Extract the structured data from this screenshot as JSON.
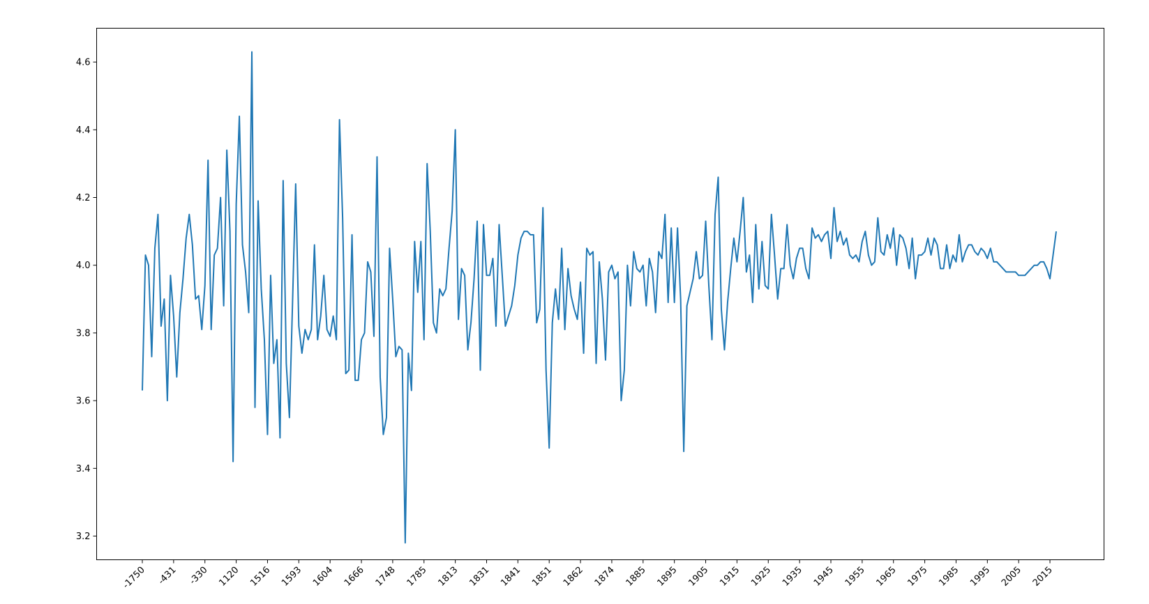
{
  "chart_data": {
    "type": "line",
    "title": "",
    "xlabel": "",
    "ylabel": "",
    "grid": false,
    "legend": "none",
    "line_color": "#1f77b4",
    "ylim": [
      3.13,
      4.7
    ],
    "yticks": [
      3.2,
      3.4,
      3.6,
      3.8,
      4.0,
      4.2,
      4.4,
      4.6
    ],
    "xtick_labels": [
      "-1750",
      "-431",
      "-330",
      "1120",
      "1516",
      "1593",
      "1604",
      "1666",
      "1748",
      "1785",
      "1813",
      "1831",
      "1841",
      "1851",
      "1862",
      "1874",
      "1885",
      "1895",
      "1905",
      "1915",
      "1925",
      "1935",
      "1945",
      "1955",
      "1965",
      "1975",
      "1985",
      "1995",
      "2005",
      "2015"
    ],
    "xtick_every": 10,
    "series": [
      {
        "values": [
          3.63,
          4.03,
          4.0,
          3.73,
          4.05,
          4.15,
          3.82,
          3.9,
          3.6,
          3.97,
          3.85,
          3.67,
          3.86,
          3.96,
          4.08,
          4.15,
          4.06,
          3.9,
          3.91,
          3.81,
          3.94,
          4.31,
          3.81,
          4.03,
          4.05,
          4.2,
          3.88,
          4.34,
          4.1,
          3.42,
          4.18,
          4.44,
          4.06,
          3.98,
          3.86,
          4.63,
          3.58,
          4.19,
          3.93,
          3.78,
          3.5,
          3.97,
          3.71,
          3.78,
          3.49,
          4.25,
          3.71,
          3.55,
          3.89,
          4.24,
          3.82,
          3.74,
          3.81,
          3.78,
          3.81,
          4.06,
          3.78,
          3.85,
          3.97,
          3.81,
          3.79,
          3.85,
          3.78,
          4.43,
          4.14,
          3.68,
          3.69,
          4.09,
          3.66,
          3.66,
          3.78,
          3.8,
          4.01,
          3.98,
          3.79,
          4.32,
          3.67,
          3.5,
          3.55,
          4.05,
          3.9,
          3.73,
          3.76,
          3.75,
          3.18,
          3.74,
          3.63,
          4.07,
          3.92,
          4.07,
          3.78,
          4.3,
          4.1,
          3.83,
          3.8,
          3.93,
          3.91,
          3.93,
          4.05,
          4.16,
          4.4,
          3.84,
          3.99,
          3.97,
          3.75,
          3.83,
          3.96,
          4.13,
          3.69,
          4.12,
          3.97,
          3.97,
          4.02,
          3.82,
          4.12,
          3.97,
          3.82,
          3.85,
          3.88,
          3.94,
          4.03,
          4.08,
          4.1,
          4.1,
          4.09,
          4.09,
          3.83,
          3.87,
          4.17,
          3.69,
          3.46,
          3.83,
          3.93,
          3.84,
          4.05,
          3.81,
          3.99,
          3.91,
          3.87,
          3.84,
          3.95,
          3.74,
          4.05,
          4.03,
          4.04,
          3.71,
          4.01,
          3.9,
          3.72,
          3.98,
          4.0,
          3.96,
          3.98,
          3.6,
          3.69,
          4.0,
          3.88,
          4.04,
          3.99,
          3.98,
          4.0,
          3.88,
          4.02,
          3.98,
          3.86,
          4.04,
          4.02,
          4.15,
          3.89,
          4.11,
          3.89,
          4.11,
          3.9,
          3.45,
          3.88,
          3.92,
          3.96,
          4.04,
          3.96,
          3.97,
          4.13,
          3.94,
          3.78,
          4.15,
          4.26,
          3.87,
          3.75,
          3.89,
          3.99,
          4.08,
          4.01,
          4.1,
          4.2,
          3.98,
          4.03,
          3.89,
          4.12,
          3.93,
          4.07,
          3.94,
          3.93,
          4.15,
          4.03,
          3.9,
          3.99,
          3.99,
          4.12,
          4.0,
          3.96,
          4.02,
          4.05,
          4.05,
          3.99,
          3.96,
          4.11,
          4.08,
          4.09,
          4.07,
          4.09,
          4.1,
          4.02,
          4.17,
          4.07,
          4.1,
          4.06,
          4.08,
          4.03,
          4.02,
          4.03,
          4.01,
          4.07,
          4.1,
          4.03,
          4.0,
          4.01,
          4.14,
          4.04,
          4.03,
          4.09,
          4.05,
          4.11,
          4.0,
          4.09,
          4.08,
          4.05,
          3.99,
          4.08,
          3.96,
          4.03,
          4.03,
          4.04,
          4.08,
          4.03,
          4.08,
          4.06,
          3.99,
          3.99,
          4.06,
          3.99,
          4.03,
          4.01,
          4.09,
          4.01,
          4.04,
          4.06,
          4.06,
          4.04,
          4.03,
          4.05,
          4.04,
          4.02,
          4.05,
          4.01,
          4.01,
          4.0,
          3.99,
          3.98,
          3.98,
          3.98,
          3.98,
          3.97,
          3.97,
          3.97,
          3.98,
          3.99,
          4.0,
          4.0,
          4.01,
          4.01,
          3.99,
          3.96,
          4.03,
          4.1
        ]
      }
    ]
  }
}
